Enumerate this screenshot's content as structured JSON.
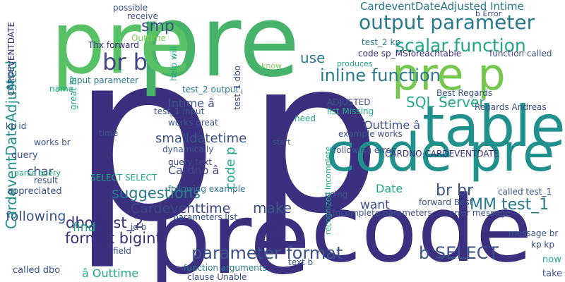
{
  "words": [
    {
      "text": "p",
      "color": "#3b2f7f"
    },
    {
      "text": "p",
      "color": "#3b2f7f"
    },
    {
      "text": "pre",
      "color": "#47b36a"
    },
    {
      "text": "pre",
      "color": "#3b2f7f"
    },
    {
      "text": "code",
      "color": "#3b2f7f"
    },
    {
      "text": "code pre",
      "color": "#20908c"
    },
    {
      "text": "pre p",
      "color": "#75c74e"
    },
    {
      "text": "pre",
      "color": "#58c166"
    },
    {
      "text": "table",
      "color": "#20908c"
    },
    {
      "text": "br b",
      "color": "#414487"
    },
    {
      "text": "output parameter",
      "color": "#2a788e"
    },
    {
      "text": "scalar function",
      "color": "#22a884"
    },
    {
      "text": "CardeventDateAdjusted Intime",
      "color": "#2a788e"
    },
    {
      "text": "inline function",
      "color": "#2a788e"
    },
    {
      "text": "smp",
      "color": "#3b528b"
    },
    {
      "text": "use",
      "color": "#2a788e"
    },
    {
      "text": "SQL Server",
      "color": "#22a884"
    },
    {
      "text": "dbo test_2",
      "color": "#3b2f7f"
    },
    {
      "text": "format bigint",
      "color": "#3b2f7f"
    },
    {
      "text": "parameter format",
      "color": "#3b528b"
    },
    {
      "text": "b SELECT",
      "color": "#3b528b"
    },
    {
      "text": "br br",
      "color": "#3b528b"
    },
    {
      "text": "MM test_1",
      "color": "#2a788e"
    },
    {
      "text": "make",
      "color": "#3b528b"
    },
    {
      "text": "want",
      "color": "#3b528b"
    },
    {
      "text": "Date",
      "color": "#22a884"
    },
    {
      "text": "suggestions",
      "color": "#2a788e"
    },
    {
      "text": "Cardeventtime",
      "color": "#414487"
    },
    {
      "text": "following",
      "color": "#3b528b"
    },
    {
      "text": "find",
      "color": "#22a884"
    },
    {
      "text": "CardeventDateAdjusted",
      "color": "#20908c"
    },
    {
      "text": "smalldatetime",
      "color": "#3b528b"
    },
    {
      "text": "Intime â",
      "color": "#3b528b"
    },
    {
      "text": "Cardno â",
      "color": "#414487"
    },
    {
      "text": "Outtime â",
      "color": "#3b528b"
    },
    {
      "text": "â Outtime",
      "color": "#22a884"
    },
    {
      "text": "query",
      "color": "#3b528b"
    },
    {
      "text": "char",
      "color": "#3b528b"
    },
    {
      "text": "Thx forward",
      "color": "#3b2f7f"
    },
    {
      "text": "Outtime",
      "color": "#7ad151"
    },
    {
      "text": "input parameter",
      "color": "#2a788e"
    },
    {
      "text": "test_2 output",
      "color": "#2a788e"
    },
    {
      "text": "test_1 input",
      "color": "#3b528b"
    },
    {
      "text": "works great",
      "color": "#3b528b"
    },
    {
      "text": "dynamically",
      "color": "#3b528b"
    },
    {
      "text": "query text",
      "color": "#414487"
    },
    {
      "text": "parameters list",
      "color": "#3b528b"
    },
    {
      "text": "following example",
      "color": "#2a788e"
    },
    {
      "text": "function arguments",
      "color": "#2a788e"
    },
    {
      "text": "clause Unable",
      "color": "#3b528b"
    },
    {
      "text": "example works",
      "color": "#3b528b"
    },
    {
      "text": "following error",
      "color": "#3b528b"
    },
    {
      "text": "CARDNO CARDEVENTDATE",
      "color": "#3b2f7f"
    },
    {
      "text": "Incomplete parameters",
      "color": "#3b528b"
    },
    {
      "text": "error message",
      "color": "#3b528b"
    },
    {
      "text": "forward Best",
      "color": "#3b528b"
    },
    {
      "text": "called test_1",
      "color": "#3b528b"
    },
    {
      "text": "message br",
      "color": "#3b528b"
    },
    {
      "text": "kp kp",
      "color": "#3b528b"
    },
    {
      "text": "code sp_MSforeachtable",
      "color": "#3b2f7f"
    },
    {
      "text": "function called",
      "color": "#3b528b"
    },
    {
      "text": "Best Regards",
      "color": "#3b528b"
    },
    {
      "text": "Regards Andreas",
      "color": "#3b528b"
    },
    {
      "text": "ADJUSTED",
      "color": "#3b528b"
    },
    {
      "text": "list Missing",
      "color": "#22a884"
    },
    {
      "text": "need",
      "color": "#22a884"
    },
    {
      "text": "start",
      "color": "#3b528b"
    },
    {
      "text": "know",
      "color": "#7ad151"
    },
    {
      "text": "produces",
      "color": "#22a884"
    },
    {
      "text": "test_1 dbo",
      "color": "#3b528b"
    },
    {
      "text": "receive",
      "color": "#3b528b"
    },
    {
      "text": "possible",
      "color": "#3b528b"
    },
    {
      "text": "help will",
      "color": "#22a884"
    },
    {
      "text": "b Error",
      "color": "#3b528b"
    },
    {
      "text": "test_2 kp",
      "color": "#2a788e"
    },
    {
      "text": "called dbo",
      "color": "#3b528b"
    },
    {
      "text": "appreciated",
      "color": "#3b528b"
    },
    {
      "text": "parse query",
      "color": "#22a884"
    },
    {
      "text": "result",
      "color": "#3b528b"
    },
    {
      "text": "works br",
      "color": "#3b528b"
    },
    {
      "text": "kp id",
      "color": "#3b528b"
    },
    {
      "text": "name",
      "color": "#22a884"
    },
    {
      "text": "id b",
      "color": "#3b528b"
    },
    {
      "text": "field",
      "color": "#3b528b"
    },
    {
      "text": "text b",
      "color": "#3b528b"
    },
    {
      "text": "using",
      "color": "#3b528b"
    },
    {
      "text": "take",
      "color": "#3b528b"
    },
    {
      "text": "now",
      "color": "#22a884"
    },
    {
      "text": "time",
      "color": "#3b528b"
    },
    {
      "text": "SELECT SELECT",
      "color": "#22a884"
    },
    {
      "text": "CARDEVENTDATE",
      "color": "#3b2f7f"
    },
    {
      "text": "great br",
      "color": "#22a884"
    },
    {
      "text": "â",
      "color": "#20908c"
    },
    {
      "text": "recognized Incomplete",
      "color": "#22a884"
    },
    {
      "text": "code p",
      "color": "#22a884"
    }
  ]
}
